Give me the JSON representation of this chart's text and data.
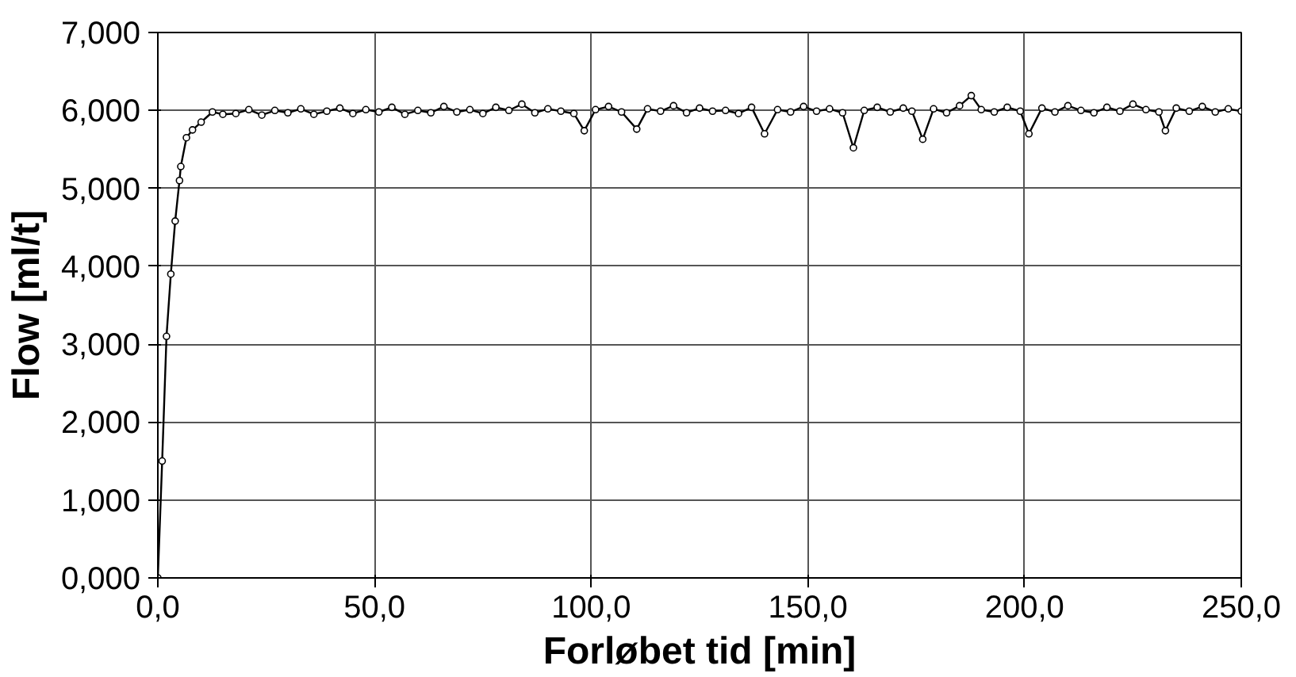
{
  "chart_data": {
    "type": "line",
    "xlabel": "Forløbet tid [min]",
    "ylabel": "Flow [ml/t]",
    "x": [
      0,
      1,
      2,
      3,
      4,
      5,
      5.3,
      6.6,
      8,
      10,
      12.6,
      15,
      18,
      21,
      24,
      27,
      30,
      33,
      36,
      39,
      42,
      45,
      48,
      51,
      54,
      57,
      60,
      63,
      66,
      69,
      72,
      75,
      78,
      81,
      84,
      87,
      90,
      93,
      96,
      98.4,
      101,
      104,
      107,
      110.5,
      113,
      116,
      119,
      122,
      125,
      128,
      131,
      134,
      137,
      140,
      143,
      146,
      149,
      152,
      155,
      158,
      160.5,
      163,
      166,
      169,
      172,
      174,
      176.5,
      179,
      182,
      185,
      187.7,
      190,
      193,
      196,
      199,
      201,
      204,
      207,
      210,
      213,
      216,
      219,
      222,
      225,
      228,
      231,
      232.5,
      235,
      238,
      241,
      244,
      247,
      250
    ],
    "series": [
      {
        "color": "#000000",
        "values": [
          0,
          1.5,
          3.1,
          3.9,
          4.58,
          5.1,
          5.28,
          5.65,
          5.75,
          5.85,
          5.98,
          5.95,
          5.96,
          6.01,
          5.94,
          6,
          5.97,
          6.02,
          5.95,
          5.99,
          6.03,
          5.96,
          6.01,
          5.98,
          6.04,
          5.95,
          6,
          5.97,
          6.05,
          5.98,
          6.01,
          5.96,
          6.04,
          6,
          6.08,
          5.97,
          6.02,
          5.99,
          5.96,
          5.74,
          6.01,
          6.05,
          5.98,
          5.76,
          6.02,
          5.99,
          6.06,
          5.97,
          6.03,
          5.99,
          6,
          5.96,
          6.04,
          5.7,
          6.01,
          5.98,
          6.05,
          5.99,
          6.02,
          5.97,
          5.52,
          6,
          6.04,
          5.98,
          6.03,
          5.99,
          5.63,
          6.02,
          5.97,
          6.06,
          6.19,
          6.01,
          5.98,
          6.04,
          5.99,
          5.7,
          6.03,
          5.98,
          6.06,
          6,
          5.97,
          6.04,
          5.99,
          6.08,
          6.01,
          5.98,
          5.74,
          6.03,
          5.99,
          6.05,
          5.98,
          6.02,
          5.99
        ]
      }
    ],
    "xlim": [
      0,
      250
    ],
    "ylim": [
      0,
      7
    ],
    "xticks": [
      {
        "value": 0,
        "label": "0,0"
      },
      {
        "value": 50,
        "label": "50,0"
      },
      {
        "value": 100,
        "label": "100,0"
      },
      {
        "value": 150,
        "label": "150,0"
      },
      {
        "value": 200,
        "label": "200,0"
      },
      {
        "value": 250,
        "label": "250,0"
      }
    ],
    "yticks": [
      {
        "value": 0,
        "label": "0,000"
      },
      {
        "value": 1,
        "label": "1,000"
      },
      {
        "value": 2,
        "label": "2,000"
      },
      {
        "value": 3,
        "label": "3,000"
      },
      {
        "value": 4,
        "label": "4,000"
      },
      {
        "value": 5,
        "label": "5,000"
      },
      {
        "value": 6,
        "label": "6,000"
      },
      {
        "value": 7,
        "label": "7,000"
      }
    ],
    "grid": true,
    "marker": "circle",
    "line_style": "solid"
  }
}
